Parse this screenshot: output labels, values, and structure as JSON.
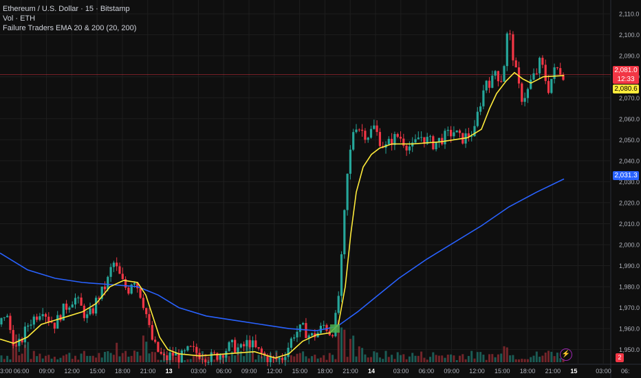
{
  "legend": {
    "line1": "Ethereum / U.S. Dollar · 15 · Bitstamp",
    "line2": "Vol · ETH",
    "line3": "Failure Traders EMA 20 & 200 (20, 200)"
  },
  "price_axis": {
    "ticks": [
      "2,110.0",
      "2,100.0",
      "2,090.0",
      "2,080.0",
      "2,070.0",
      "2,060.0",
      "2,050.0",
      "2,040.0",
      "2,030.0",
      "2,020.0",
      "2,010.0",
      "2,000.0",
      "1,990.0",
      "1,980.0",
      "1,970.0",
      "1,960.0",
      "1,950.0"
    ],
    "tick_values": [
      2110,
      2100,
      2090,
      2080,
      2070,
      2060,
      2050,
      2040,
      2030,
      2020,
      2010,
      2000,
      1990,
      1980,
      1970,
      1960,
      1950
    ]
  },
  "price_tags": {
    "last_price": "2,081.0",
    "countdown": "12:33",
    "ema20": "2,080.6",
    "ema200": "2,031.3"
  },
  "time_axis": {
    "labels": [
      "3:00",
      "06:00",
      "09:00",
      "12:00",
      "15:00",
      "18:00",
      "21:00",
      "13",
      "03:00",
      "06:00",
      "09:00",
      "12:00",
      "15:00",
      "18:00",
      "21:00",
      "14",
      "03:00",
      "06:00",
      "09:00",
      "12:00",
      "15:00",
      "18:00",
      "21:00",
      "15",
      "03:00",
      "06:"
    ]
  },
  "badge_count": "2",
  "colors": {
    "background": "#0f0f0f",
    "bull": "#26a69a",
    "bear": "#f23645",
    "ema20": "#ffeb3b",
    "ema200": "#2962ff",
    "grid": "#1e1e1e"
  },
  "chart_data": {
    "type": "candlestick",
    "instrument": "Ethereum / U.S. Dollar",
    "interval": "15",
    "exchange": "Bitstamp",
    "ylim": [
      1944,
      2112
    ],
    "close_path": [
      [
        0,
        1962
      ],
      [
        8,
        1968
      ],
      [
        16,
        1958
      ],
      [
        24,
        1950
      ],
      [
        32,
        1955
      ],
      [
        42,
        1963
      ],
      [
        52,
        1966
      ],
      [
        62,
        1970
      ],
      [
        70,
        1965
      ],
      [
        80,
        1962
      ],
      [
        90,
        1968
      ],
      [
        100,
        1972
      ],
      [
        108,
        1975
      ],
      [
        118,
        1970
      ],
      [
        126,
        1965
      ],
      [
        134,
        1968
      ],
      [
        142,
        1975
      ],
      [
        150,
        1978
      ],
      [
        158,
        1984
      ],
      [
        164,
        1992
      ],
      [
        170,
        1988
      ],
      [
        178,
        1982
      ],
      [
        186,
        1978
      ],
      [
        194,
        1985
      ],
      [
        200,
        1980
      ],
      [
        206,
        1975
      ],
      [
        212,
        1968
      ],
      [
        218,
        1958
      ],
      [
        224,
        1952
      ],
      [
        232,
        1948
      ],
      [
        240,
        1945
      ],
      [
        250,
        1948
      ],
      [
        262,
        1946
      ],
      [
        276,
        1950
      ],
      [
        290,
        1948
      ],
      [
        306,
        1946
      ],
      [
        320,
        1948
      ],
      [
        336,
        1952
      ],
      [
        350,
        1950
      ],
      [
        362,
        1954
      ],
      [
        372,
        1950
      ],
      [
        384,
        1947
      ],
      [
        396,
        1945
      ],
      [
        410,
        1946
      ],
      [
        420,
        1952
      ],
      [
        428,
        1958
      ],
      [
        440,
        1960
      ],
      [
        452,
        1956
      ],
      [
        462,
        1958
      ],
      [
        472,
        1962
      ],
      [
        480,
        1958
      ],
      [
        486,
        1960
      ],
      [
        492,
        1975
      ],
      [
        496,
        1990
      ],
      [
        500,
        2010
      ],
      [
        504,
        2030
      ],
      [
        508,
        2040
      ],
      [
        512,
        2052
      ],
      [
        516,
        2058
      ],
      [
        524,
        2055
      ],
      [
        534,
        2052
      ],
      [
        544,
        2056
      ],
      [
        552,
        2050
      ],
      [
        560,
        2046
      ],
      [
        570,
        2050
      ],
      [
        580,
        2052
      ],
      [
        590,
        2048
      ],
      [
        600,
        2046
      ],
      [
        610,
        2052
      ],
      [
        620,
        2050
      ],
      [
        630,
        2048
      ],
      [
        640,
        2050
      ],
      [
        650,
        2052
      ],
      [
        660,
        2054
      ],
      [
        670,
        2050
      ],
      [
        680,
        2052
      ],
      [
        690,
        2054
      ],
      [
        696,
        2065
      ],
      [
        702,
        2072
      ],
      [
        708,
        2080
      ],
      [
        714,
        2076
      ],
      [
        720,
        2083
      ],
      [
        728,
        2078
      ],
      [
        734,
        2088
      ],
      [
        738,
        2102
      ],
      [
        742,
        2098
      ],
      [
        748,
        2086
      ],
      [
        752,
        2078
      ],
      [
        758,
        2070
      ],
      [
        766,
        2072
      ],
      [
        772,
        2078
      ],
      [
        780,
        2082
      ],
      [
        786,
        2088
      ],
      [
        792,
        2080
      ],
      [
        798,
        2074
      ],
      [
        804,
        2082
      ],
      [
        812,
        2084
      ],
      [
        820,
        2081
      ]
    ],
    "ema20_path": [
      [
        0,
        1955
      ],
      [
        20,
        1953
      ],
      [
        40,
        1956
      ],
      [
        60,
        1962
      ],
      [
        80,
        1964
      ],
      [
        100,
        1966
      ],
      [
        120,
        1968
      ],
      [
        140,
        1972
      ],
      [
        160,
        1980
      ],
      [
        180,
        1983
      ],
      [
        200,
        1982
      ],
      [
        212,
        1976
      ],
      [
        222,
        1966
      ],
      [
        232,
        1956
      ],
      [
        244,
        1950
      ],
      [
        260,
        1948
      ],
      [
        290,
        1947
      ],
      [
        330,
        1948
      ],
      [
        370,
        1949
      ],
      [
        400,
        1946
      ],
      [
        420,
        1948
      ],
      [
        440,
        1954
      ],
      [
        460,
        1957
      ],
      [
        480,
        1958
      ],
      [
        492,
        1962
      ],
      [
        502,
        1980
      ],
      [
        510,
        2005
      ],
      [
        518,
        2025
      ],
      [
        528,
        2037
      ],
      [
        540,
        2043
      ],
      [
        552,
        2046
      ],
      [
        570,
        2048
      ],
      [
        600,
        2048
      ],
      [
        640,
        2049
      ],
      [
        680,
        2051
      ],
      [
        700,
        2055
      ],
      [
        712,
        2065
      ],
      [
        722,
        2072
      ],
      [
        736,
        2078
      ],
      [
        748,
        2082
      ],
      [
        760,
        2079
      ],
      [
        772,
        2077
      ],
      [
        790,
        2080
      ],
      [
        820,
        2080.6
      ]
    ],
    "ema200_path": [
      [
        0,
        1996
      ],
      [
        40,
        1988
      ],
      [
        80,
        1984
      ],
      [
        120,
        1982
      ],
      [
        160,
        1981
      ],
      [
        200,
        1980
      ],
      [
        230,
        1976
      ],
      [
        260,
        1970
      ],
      [
        300,
        1966
      ],
      [
        340,
        1964
      ],
      [
        380,
        1962
      ],
      [
        420,
        1960
      ],
      [
        460,
        1959
      ],
      [
        490,
        1961
      ],
      [
        520,
        1968
      ],
      [
        550,
        1976
      ],
      [
        580,
        1984
      ],
      [
        620,
        1993
      ],
      [
        660,
        2001
      ],
      [
        700,
        2009
      ],
      [
        740,
        2018
      ],
      [
        780,
        2025
      ],
      [
        820,
        2031.3
      ]
    ],
    "volume_bursts": [
      [
        20,
        45
      ],
      [
        40,
        30
      ],
      [
        170,
        35
      ],
      [
        210,
        40
      ],
      [
        360,
        30
      ],
      [
        492,
        75
      ],
      [
        498,
        55
      ],
      [
        510,
        40
      ],
      [
        524,
        28
      ],
      [
        736,
        30
      ],
      [
        800,
        20
      ]
    ]
  }
}
